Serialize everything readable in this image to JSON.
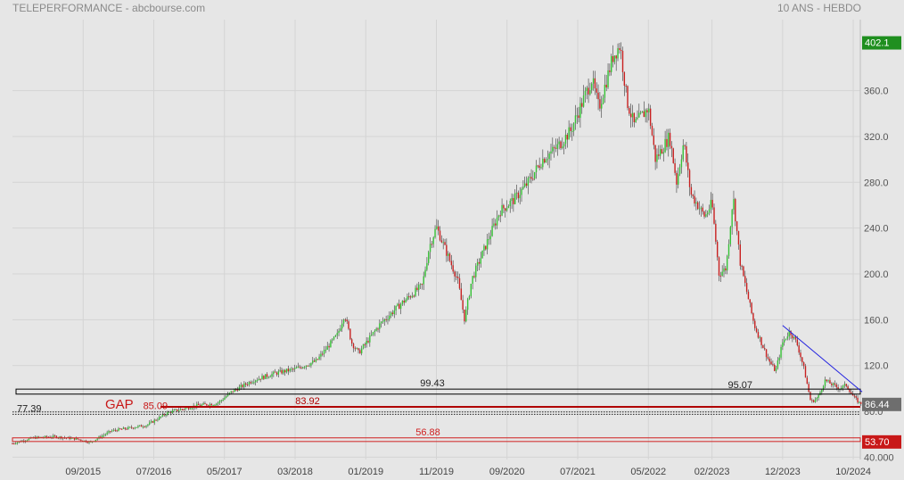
{
  "header": {
    "title": "TELEPERFORMANCE - abcbourse.com",
    "period": "10 ANS - HEBDO"
  },
  "chart_data": {
    "type": "candlestick",
    "y_axis": {
      "ticks": [
        40.0,
        80.0,
        120.0,
        160.0,
        200.0,
        240.0,
        280.0,
        320.0,
        360.0
      ],
      "tick_labels": [
        "40.000",
        "80.0",
        "120.0",
        "160.0",
        "200.0",
        "240.0",
        "280.0",
        "320.0",
        "360.0"
      ],
      "range": [
        38,
        422
      ]
    },
    "x_axis": {
      "tick_labels": [
        "09/2015",
        "07/2016",
        "05/2017",
        "03/2018",
        "01/2019",
        "11/2019",
        "09/2020",
        "07/2021",
        "05/2022",
        "02/2023",
        "12/2023",
        "10/2024"
      ],
      "tick_dates": [
        "2015-09",
        "2016-07",
        "2017-05",
        "2018-03",
        "2019-01",
        "2019-11",
        "2020-09",
        "2021-07",
        "2022-05",
        "2023-02",
        "2023-12",
        "2024-10"
      ],
      "range": [
        "2014-11",
        "2024-11"
      ]
    },
    "price_anchors": [
      [
        "2014-11",
        52
      ],
      [
        "2015-02",
        57
      ],
      [
        "2015-05",
        58
      ],
      [
        "2015-08",
        56
      ],
      [
        "2015-10",
        53
      ],
      [
        "2016-01",
        63
      ],
      [
        "2016-04",
        66
      ],
      [
        "2016-06",
        68
      ],
      [
        "2016-09",
        79
      ],
      [
        "2016-11",
        82
      ],
      [
        "2017-01",
        85
      ],
      [
        "2017-04",
        87
      ],
      [
        "2017-06",
        97
      ],
      [
        "2017-09",
        107
      ],
      [
        "2017-12",
        113
      ],
      [
        "2018-03",
        117
      ],
      [
        "2018-06",
        124
      ],
      [
        "2018-09",
        147
      ],
      [
        "2018-10",
        165
      ],
      [
        "2018-11",
        140
      ],
      [
        "2018-12",
        131
      ],
      [
        "2019-03",
        156
      ],
      [
        "2019-06",
        174
      ],
      [
        "2019-09",
        190
      ],
      [
        "2019-10",
        224
      ],
      [
        "2019-11",
        241
      ],
      [
        "2020-01",
        210
      ],
      [
        "2020-02",
        195
      ],
      [
        "2020-03",
        160
      ],
      [
        "2020-04",
        195
      ],
      [
        "2020-06",
        225
      ],
      [
        "2020-08",
        255
      ],
      [
        "2020-10",
        265
      ],
      [
        "2020-12",
        280
      ],
      [
        "2021-02",
        300
      ],
      [
        "2021-04",
        310
      ],
      [
        "2021-06",
        325
      ],
      [
        "2021-07",
        340
      ],
      [
        "2021-09",
        370
      ],
      [
        "2021-10",
        345
      ],
      [
        "2021-12",
        390
      ],
      [
        "2022-01",
        400
      ],
      [
        "2022-02",
        350
      ],
      [
        "2022-03",
        330
      ],
      [
        "2022-05",
        345
      ],
      [
        "2022-06",
        300
      ],
      [
        "2022-08",
        320
      ],
      [
        "2022-09",
        280
      ],
      [
        "2022-10",
        315
      ],
      [
        "2022-11",
        270
      ],
      [
        "2023-01",
        250
      ],
      [
        "2023-02",
        262
      ],
      [
        "2023-03",
        200
      ],
      [
        "2023-04",
        205
      ],
      [
        "2023-05",
        268
      ],
      [
        "2023-06",
        210
      ],
      [
        "2023-08",
        155
      ],
      [
        "2023-10",
        125
      ],
      [
        "2023-11",
        115
      ],
      [
        "2023-12",
        140
      ],
      [
        "2024-01",
        150
      ],
      [
        "2024-02",
        140
      ],
      [
        "2024-03",
        118
      ],
      [
        "2024-04",
        88
      ],
      [
        "2024-05",
        92
      ],
      [
        "2024-06",
        107
      ],
      [
        "2024-08",
        100
      ],
      [
        "2024-09",
        103
      ],
      [
        "2024-10",
        93
      ],
      [
        "2024-11",
        86.44
      ]
    ],
    "up_color": "#35c135",
    "down_color": "#c82020",
    "current_price": 86.44,
    "price_labels": [
      {
        "value": 402.1,
        "text": "402.1",
        "color": "#1f8f1f"
      },
      {
        "value": 86.44,
        "text": "86.44",
        "color": "#6e6e6e"
      },
      {
        "value": 53.7,
        "text": "53.70",
        "color": "#c81818"
      }
    ],
    "annotations": {
      "resistance_zone": {
        "low": 95.07,
        "high": 99.43,
        "label_left": "99.43",
        "label_right": "95.07",
        "label_right_date": "2023-06",
        "color": "#000000"
      },
      "support_line": {
        "value": 83.92,
        "label": "83.92",
        "color": "#b00000"
      },
      "support_zone": {
        "low": 53.7,
        "high": 56.88,
        "label": "56.88",
        "color": "#d02020"
      },
      "dotted_levels": [
        {
          "value": 77.39,
          "label": "77.39"
        },
        {
          "value": 79.5,
          "label": ""
        }
      ],
      "gap": {
        "label": "GAP",
        "value_label": "85.09",
        "date": "2016-06",
        "color": "#c81818"
      },
      "trendline": {
        "from": [
          "2023-12",
          155
        ],
        "to": [
          "2024-10",
          97
        ],
        "color": "#2424e0"
      }
    }
  }
}
